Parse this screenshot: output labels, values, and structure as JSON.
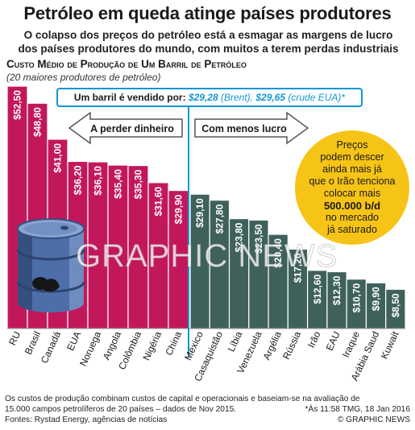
{
  "header": {
    "title": "Petróleo em queda atinge países produtores",
    "subtitle_line1": "O colapso dos preços do petróleo está a esmagar as margens de lucro",
    "subtitle_line2": "dos países produtores do mundo, com muitos a terem perdas industriais"
  },
  "chart_header": {
    "title": "Custo Médio de Produção de Um Barril de Petróleo",
    "subtitle": "(20 maiores produtores de petróleo)"
  },
  "price_box": {
    "label": "Um barril é vendido por:",
    "brent_value": "$29,28",
    "brent_label": "(Brent),",
    "crude_value": "$29,65",
    "crude_label": "(crude EUA)*"
  },
  "arrows": {
    "left_label": "A perder dinheiro",
    "right_label": "Com menos lucro"
  },
  "callout": {
    "line1": "Preços",
    "line2": "podem descer",
    "line3": "ainda mais já",
    "line4": "que o Irão tenciona",
    "line5": "colocar mais",
    "line6": "500.000 b/d",
    "line7": "no mercado",
    "line8": "já saturado"
  },
  "watermark": {
    "text": "GRAPHIC NEWS"
  },
  "footer": {
    "line1": "Os custos de produção combinam custos de capital e operacionais e baseiam-se na avaliação de",
    "line2": "15.000 campos petrolíferos de 20 países – dados de Nov 2015.",
    "line2_right": "*Às 11:58 TMG, 18 Jan 2016",
    "line3": "Fontes: Rystad Energy, agências de notícias",
    "line3_right": "© GRAPHIC NEWS"
  },
  "colors": {
    "loss": "#c2185b",
    "profit": "#3f615c",
    "price_line": "#1196d2",
    "callout": "#f6c416",
    "barrel": "#4d6ea8"
  },
  "chart_data": {
    "type": "bar",
    "title": "Custo Médio de Produção de Um Barril de Petróleo",
    "subtitle": "(20 maiores produtores de petróleo)",
    "categories": [
      "RU",
      "Brasil",
      "Canadá",
      "EUA",
      "Noruega",
      "Angola",
      "Colômbia",
      "Nigéria",
      "China",
      "México",
      "Casaquistão",
      "Líbia",
      "Venezuela",
      "Argélia",
      "Rússia",
      "Irão",
      "EAU",
      "Iraque",
      "Arábia Saud",
      "Kuwait"
    ],
    "values": [
      52.5,
      48.8,
      41.0,
      36.2,
      36.1,
      35.4,
      35.3,
      31.6,
      29.9,
      29.1,
      27.8,
      23.8,
      23.5,
      20.4,
      17.2,
      12.6,
      12.3,
      10.7,
      9.9,
      8.5
    ],
    "value_labels": [
      "$52,50",
      "$48,80",
      "$41,00",
      "$36,20",
      "$36,10",
      "$35,40",
      "$35,30",
      "$31,60",
      "$29,90",
      "$29,10",
      "$27,80",
      "$23,80",
      "$23,50",
      "$20,40",
      "$17,20",
      "$12,60",
      "$12,30",
      "$10,70",
      "$9,90",
      "$8,50"
    ],
    "loss_count": 9,
    "reference_line": 29.28,
    "ylim": [
      0,
      52.5
    ],
    "grid": false,
    "legend": "none"
  }
}
